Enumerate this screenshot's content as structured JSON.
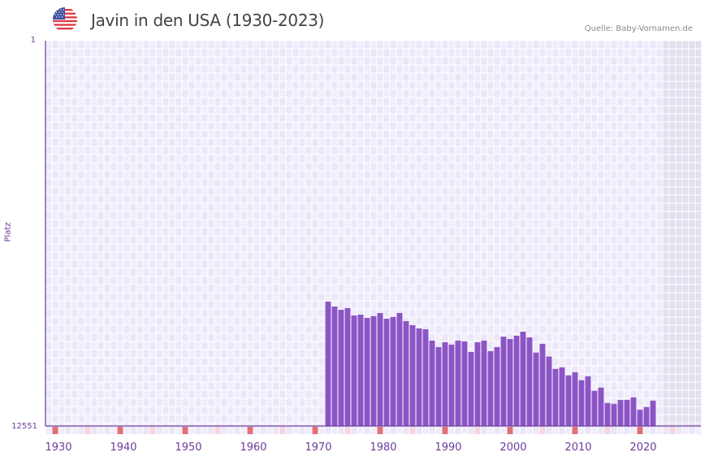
{
  "header": {
    "title": "Javin in den USA (1930-2023)",
    "source": "Quelle: Baby-Vornamen.de",
    "flag_icon": "us-flag-icon"
  },
  "colors": {
    "bar": "#8b55c6",
    "axis": "#6a3d9a",
    "grid_cell_a": "#f1edfb",
    "grid_cell_b": "#ebe6f8",
    "future_shade": "#e2dfee",
    "decade_marker": "#e0707a",
    "half_decade_marker": "#f5d5de"
  },
  "chart_data": {
    "type": "bar",
    "title": "Javin in den USA (1930-2023)",
    "xlabel": "",
    "ylabel": "Platz",
    "y_inverted": true,
    "ylim": [
      1,
      12551
    ],
    "xlim": [
      1928,
      2029
    ],
    "y_ticks": [
      "1",
      "12551"
    ],
    "x_ticks": [
      "1930",
      "1940",
      "1950",
      "1960",
      "1970",
      "1980",
      "1990",
      "2000",
      "2010",
      "2020"
    ],
    "grid": true,
    "legend": null,
    "categories": [
      1972,
      1973,
      1974,
      1975,
      1976,
      1977,
      1978,
      1979,
      1980,
      1981,
      1982,
      1983,
      1984,
      1985,
      1986,
      1987,
      1988,
      1989,
      1990,
      1991,
      1992,
      1993,
      1994,
      1995,
      1996,
      1997,
      1998,
      1999,
      2000,
      2001,
      2002,
      2003,
      2004,
      2005,
      2006,
      2007,
      2008,
      2009,
      2010,
      2011,
      2012,
      2013,
      2014,
      2015,
      2016,
      2017,
      2018,
      2019,
      2020,
      2021,
      2022
    ],
    "values": [
      8500,
      8660,
      8765,
      8710,
      8950,
      8925,
      9030,
      8975,
      8870,
      9055,
      9000,
      8870,
      9135,
      9265,
      9370,
      9400,
      9770,
      9980,
      9820,
      9900,
      9770,
      9795,
      10140,
      9820,
      9770,
      10110,
      9980,
      9640,
      9720,
      9610,
      9480,
      9665,
      10160,
      9875,
      10290,
      10690,
      10640,
      10900,
      10800,
      11060,
      10930,
      11400,
      11300,
      11800,
      11830,
      11700,
      11700,
      11620,
      12020,
      11930,
      11725
    ]
  },
  "axis": {
    "y_top_label": "1",
    "y_bottom_label": "12551",
    "y_title": "Platz",
    "x_labels": [
      {
        "year": 1930,
        "label": "1930"
      },
      {
        "year": 1940,
        "label": "1940"
      },
      {
        "year": 1950,
        "label": "1950"
      },
      {
        "year": 1960,
        "label": "1960"
      },
      {
        "year": 1970,
        "label": "1970"
      },
      {
        "year": 1980,
        "label": "1980"
      },
      {
        "year": 1990,
        "label": "1990"
      },
      {
        "year": 2000,
        "label": "2000"
      },
      {
        "year": 2010,
        "label": "2010"
      },
      {
        "year": 2020,
        "label": "2020"
      }
    ]
  }
}
